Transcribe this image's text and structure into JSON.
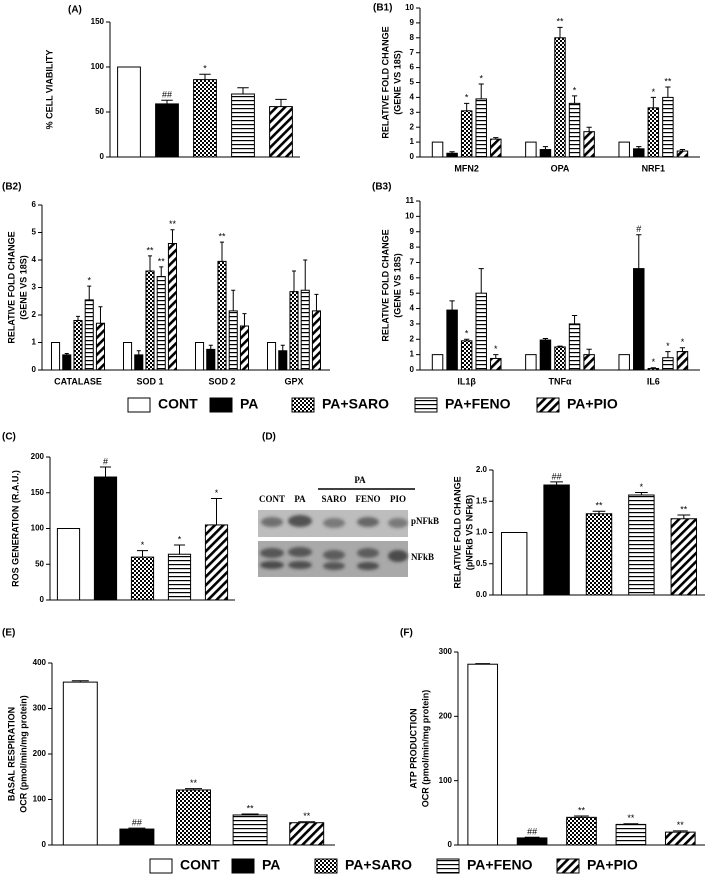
{
  "legend": [
    {
      "name": "CONT",
      "pattern": "open"
    },
    {
      "name": "PA",
      "pattern": "solid"
    },
    {
      "name": "PA+SARO",
      "pattern": "checker"
    },
    {
      "name": "PA+FENO",
      "pattern": "hlines"
    },
    {
      "name": "PA+PIO",
      "pattern": "diag"
    }
  ],
  "chart_data": [
    {
      "type": "bar",
      "panel": "(A)",
      "ylabel": [
        "% CELL VIABILITY"
      ],
      "values": [
        100,
        59,
        86,
        70,
        56
      ],
      "errors": [
        null,
        4,
        6,
        7,
        8
      ],
      "annotations": [
        null,
        "##",
        "*",
        null,
        null
      ],
      "ylim": [
        0,
        150
      ],
      "yticks": [
        0,
        50,
        100,
        150
      ]
    },
    {
      "type": "grouped-bar",
      "panel": "(B1)",
      "ylabel": [
        "RELATIVE FOLD CHANGE",
        "(GENE VS 18S)"
      ],
      "categories": [
        "MFN2",
        "OPA",
        "NRF1"
      ],
      "series": [
        {
          "values": [
            1,
            1,
            1
          ],
          "errors": [
            null,
            null,
            null
          ],
          "annotations": [
            null,
            null,
            null
          ]
        },
        {
          "values": [
            0.25,
            0.5,
            0.55
          ],
          "errors": [
            0.1,
            0.2,
            0.15
          ],
          "annotations": [
            null,
            null,
            null
          ]
        },
        {
          "values": [
            3.1,
            8.0,
            3.3
          ],
          "errors": [
            0.5,
            0.7,
            0.7
          ],
          "annotations": [
            "*",
            "**",
            "*"
          ]
        },
        {
          "values": [
            3.9,
            3.6,
            4.0
          ],
          "errors": [
            1.0,
            0.5,
            0.7
          ],
          "annotations": [
            "*",
            "*",
            "**"
          ]
        },
        {
          "values": [
            1.2,
            1.7,
            0.4
          ],
          "errors": [
            0.1,
            0.3,
            0.1
          ],
          "annotations": [
            null,
            null,
            null
          ]
        }
      ],
      "ylim": [
        0,
        10
      ],
      "yticks": [
        0,
        1,
        2,
        3,
        4,
        5,
        6,
        7,
        8,
        9,
        10
      ]
    },
    {
      "type": "grouped-bar",
      "panel": "(B2)",
      "ylabel": [
        "RELATIVE FOLD CHANGE",
        "(GENE VS 18S)"
      ],
      "categories": [
        "CATALASE",
        "SOD 1",
        "SOD 2",
        "GPX"
      ],
      "series": [
        {
          "values": [
            1,
            1,
            1,
            1
          ],
          "errors": [
            null,
            null,
            null,
            null
          ],
          "annotations": [
            null,
            null,
            null,
            null
          ]
        },
        {
          "values": [
            0.55,
            0.55,
            0.75,
            0.7
          ],
          "errors": [
            0.05,
            0.15,
            0.15,
            0.2
          ],
          "annotations": [
            null,
            null,
            null,
            null
          ]
        },
        {
          "values": [
            1.8,
            3.6,
            3.95,
            2.85
          ],
          "errors": [
            0.15,
            0.55,
            0.7,
            0.75
          ],
          "annotations": [
            null,
            "**",
            "**",
            null
          ]
        },
        {
          "values": [
            2.55,
            3.4,
            2.15,
            2.9
          ],
          "errors": [
            0.5,
            0.35,
            0.75,
            1.1
          ],
          "annotations": [
            "*",
            "**",
            null,
            null
          ]
        },
        {
          "values": [
            1.7,
            4.6,
            1.6,
            2.15
          ],
          "errors": [
            0.6,
            0.5,
            0.45,
            0.6
          ],
          "annotations": [
            null,
            "**",
            null,
            null
          ]
        }
      ],
      "ylim": [
        0,
        6
      ],
      "yticks": [
        0,
        1,
        2,
        3,
        4,
        5,
        6
      ]
    },
    {
      "type": "grouped-bar",
      "panel": "(B3)",
      "ylabel": [
        "RELATIVE FOLD CHANGE",
        "(GENE VS 18S)"
      ],
      "categories": [
        "IL1β",
        "TNFα",
        "IL6"
      ],
      "series": [
        {
          "values": [
            1,
            1,
            1
          ],
          "errors": [
            null,
            null,
            null
          ],
          "annotations": [
            null,
            null,
            null
          ]
        },
        {
          "values": [
            3.9,
            1.95,
            6.6
          ],
          "errors": [
            0.6,
            0.1,
            2.2
          ],
          "annotations": [
            null,
            null,
            "#"
          ]
        },
        {
          "values": [
            1.9,
            1.5,
            0.1
          ],
          "errors": [
            0.1,
            0.05,
            0.05
          ],
          "annotations": [
            "*",
            null,
            "*"
          ]
        },
        {
          "values": [
            5.0,
            3.0,
            0.8
          ],
          "errors": [
            1.6,
            0.55,
            0.4
          ],
          "annotations": [
            null,
            null,
            "*"
          ]
        },
        {
          "values": [
            0.75,
            1.0,
            1.2
          ],
          "errors": [
            0.25,
            0.35,
            0.25
          ],
          "annotations": [
            "*",
            null,
            "*"
          ]
        }
      ],
      "ylim": [
        0,
        11
      ],
      "yticks": [
        0,
        1,
        2,
        3,
        4,
        5,
        6,
        7,
        8,
        9,
        10,
        11
      ]
    },
    {
      "type": "bar",
      "panel": "(C)",
      "ylabel": [
        "ROS GENERATION (R.A.U.)"
      ],
      "values": [
        100,
        172,
        60,
        64,
        105
      ],
      "errors": [
        null,
        14,
        9,
        13,
        37
      ],
      "annotations": [
        null,
        "#",
        "*",
        "*",
        "*"
      ],
      "ylim": [
        0,
        200
      ],
      "yticks": [
        0,
        50,
        100,
        150,
        200
      ]
    },
    {
      "type": "bar",
      "panel": "(D)",
      "blot": {
        "lanes": [
          "CONT",
          "PA",
          "SARO",
          "FENO",
          "PIO"
        ],
        "group": "PA",
        "bands": [
          "pNFkB",
          "NFkB"
        ]
      },
      "ylabel": [
        "RELATIVE FOLD CHANGE",
        "(pNFkB VS NFkB)"
      ],
      "values": [
        1.0,
        1.76,
        1.3,
        1.6,
        1.22
      ],
      "errors": [
        null,
        0.05,
        0.04,
        0.04,
        0.06
      ],
      "annotations": [
        null,
        "##",
        "**",
        "*",
        "**"
      ],
      "ylim": [
        0,
        2
      ],
      "yticks": [
        {
          "value": 0,
          "label": "0.0"
        },
        0.5,
        {
          "value": 1,
          "label": "1.0"
        },
        1.5,
        {
          "value": 2,
          "label": "2.0"
        }
      ]
    },
    {
      "type": "bar",
      "panel": "(E)",
      "ylabel": [
        "BASAL RESPIRATION",
        "OCR (pmol/min/mg protein)"
      ],
      "values": [
        358,
        35,
        121,
        66,
        49
      ],
      "errors": [
        3,
        2,
        3,
        2,
        2
      ],
      "annotations": [
        null,
        "##",
        "**",
        "**",
        "**"
      ],
      "ylim": [
        0,
        400
      ],
      "yticks": [
        0,
        100,
        200,
        300,
        400
      ]
    },
    {
      "type": "bar",
      "panel": "(F)",
      "ylabel": [
        "ATP PRODUCTION",
        "OCR (pmol/min/mg protein)"
      ],
      "values": [
        281,
        11,
        43,
        32,
        20
      ],
      "errors": [
        1,
        1,
        2,
        1,
        2
      ],
      "annotations": [
        null,
        "##",
        "**",
        "**",
        "**"
      ],
      "ylim": [
        0,
        300
      ],
      "yticks": [
        0,
        100,
        200,
        300
      ]
    }
  ]
}
